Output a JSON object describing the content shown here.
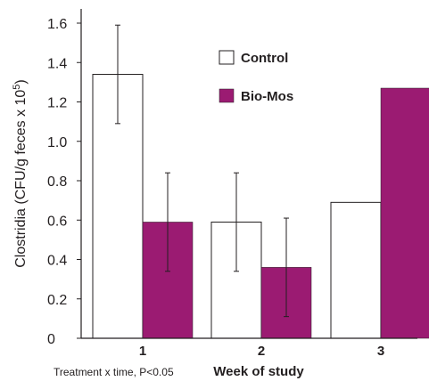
{
  "chart_data": {
    "type": "bar",
    "categories": [
      "1",
      "2",
      "3"
    ],
    "series": [
      {
        "name": "Control",
        "values": [
          1.34,
          0.59,
          0.69
        ],
        "error": [
          0.25,
          0.25,
          null
        ],
        "color": "#ffffff"
      },
      {
        "name": "Bio-Mos",
        "values": [
          0.59,
          0.36,
          1.27
        ],
        "error": [
          0.25,
          0.25,
          null
        ],
        "color": "#9b1b72"
      }
    ],
    "xlabel": "Week of study",
    "ylabel": "Clostridia (CFU/g feces x 10",
    "ylabel_sup": "5",
    "ylabel_close": ")",
    "ylim": [
      0,
      1.6
    ],
    "yticks": [
      "0",
      "0.2",
      "0.4",
      "0.6",
      "0.8",
      "1.0",
      "1.2",
      "1.4",
      "1.6"
    ],
    "note": "Treatment x time, P<0.05",
    "legend_position": "top-right",
    "grid": false
  }
}
